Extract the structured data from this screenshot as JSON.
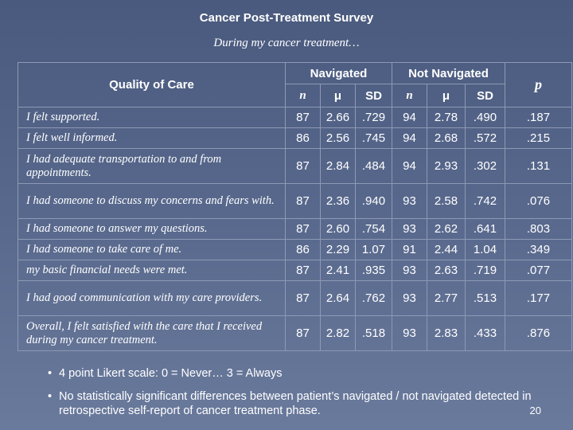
{
  "title": "Cancer Post-Treatment Survey",
  "subtitle": "During my cancer treatment…",
  "table": {
    "quality_header": "Quality of Care",
    "group_navigated": "Navigated",
    "group_not_navigated": "Not Navigated",
    "p_header": "p",
    "subheaders": [
      "n",
      "μ",
      "SD",
      "n",
      "μ",
      "SD"
    ],
    "rows": [
      {
        "label": "I felt supported.",
        "values": [
          "87",
          "2.66",
          ".729",
          "94",
          "2.78",
          ".490",
          ".187"
        ]
      },
      {
        "label": "I felt well informed.",
        "values": [
          "86",
          "2.56",
          ".745",
          "94",
          "2.68",
          ".572",
          ".215"
        ]
      },
      {
        "label": "I had adequate transportation to and from appointments.",
        "values": [
          "87",
          "2.84",
          ".484",
          "94",
          "2.93",
          ".302",
          ".131"
        ]
      },
      {
        "label": "I had someone to discuss my concerns and fears with.",
        "values": [
          "87",
          "2.36",
          ".940",
          "93",
          "2.58",
          ".742",
          ".076"
        ]
      },
      {
        "label": "I had someone to answer my questions.",
        "values": [
          "87",
          "2.60",
          ".754",
          "93",
          "2.62",
          ".641",
          ".803"
        ]
      },
      {
        "label": "I had someone to take care of me.",
        "values": [
          "86",
          "2.29",
          "1.07",
          "91",
          "2.44",
          "1.04",
          ".349"
        ]
      },
      {
        "label": "my basic financial needs were met.",
        "values": [
          "87",
          "2.41",
          ".935",
          "93",
          "2.63",
          ".719",
          ".077"
        ]
      },
      {
        "label": "I had good communication with my care providers.",
        "values": [
          "87",
          "2.64",
          ".762",
          "93",
          "2.77",
          ".513",
          ".177"
        ]
      },
      {
        "label": "Overall, I felt satisfied with the care that I received during my cancer treatment.",
        "values": [
          "87",
          "2.82",
          ".518",
          "93",
          "2.83",
          ".433",
          ".876"
        ]
      }
    ]
  },
  "notes": [
    "4 point Likert scale: 0 = Never… 3 = Always",
    "No statistically significant differences between patient’s navigated / not navigated detected in retrospective self-report of cancer treatment phase."
  ],
  "bullet": "•",
  "page_number": "20"
}
